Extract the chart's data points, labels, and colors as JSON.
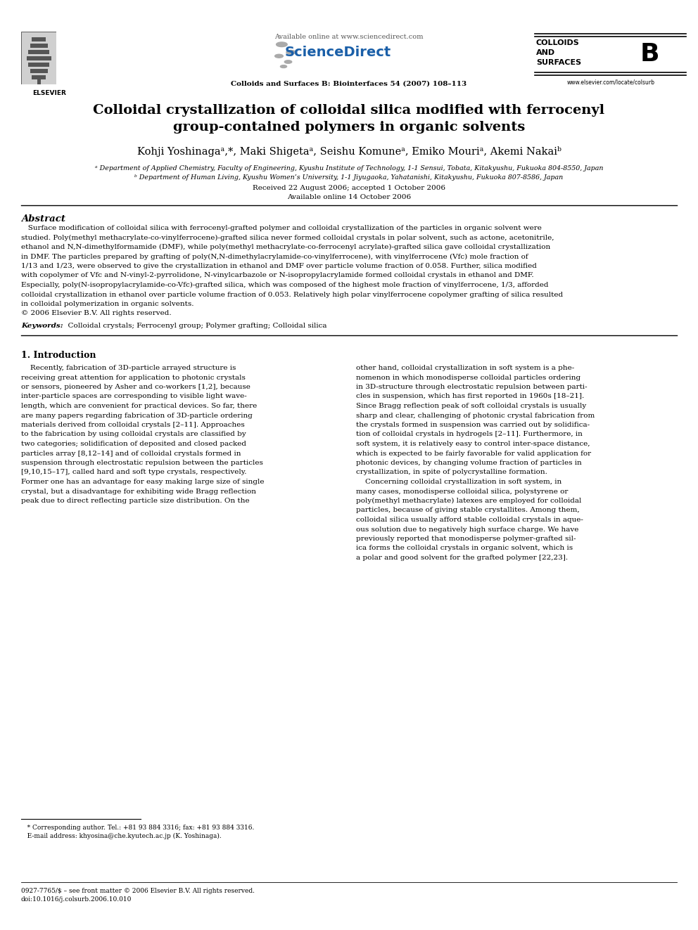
{
  "background_color": "#ffffff",
  "page_width": 9.92,
  "page_height": 13.23,
  "header": {
    "elsevier_text": "ELSEVIER",
    "available_online": "Available online at www.sciencedirect.com",
    "sciencedirect": "ScienceDirect",
    "journal_name": "Colloids and Surfaces B: Biointerfaces 54 (2007) 108–113",
    "colloids_line1": "COLLOIDS",
    "colloids_line2": "AND",
    "colloids_line3": "SURFACES",
    "colloids_B": "B",
    "website": "www.elsevier.com/locate/colsurb"
  },
  "title_line1": "Colloidal crystallization of colloidal silica modified with ferrocenyl",
  "title_line2": "group-contained polymers in organic solvents",
  "authors_line": "Kohji Yoshinagaᵃ,*, Maki Shigetaᵃ, Seishu Komuneᵃ, Emiko Mouriᵃ, Akemi Nakaiᵇ",
  "affil_a": "ᵃ Department of Applied Chemistry, Faculty of Engineering, Kyushu Institute of Technology, 1-1 Sensui, Tobata, Kitakyushu, Fukuoka 804-8550, Japan",
  "affil_b": "ᵇ Department of Human Living, Kyushu Women’s University, 1-1 Jiyugaoka, Yahatanishi, Kitakyushu, Fukuoka 807-8586, Japan",
  "received": "Received 22 August 2006; accepted 1 October 2006",
  "available": "Available online 14 October 2006",
  "abstract_title": "Abstract",
  "abstract_lines": [
    "   Surface modification of colloidal silica with ferrocenyl-grafted polymer and colloidal crystallization of the particles in organic solvent were",
    "studied. Poly(methyl methacrylate-co-vinylferrocene)-grafted silica never formed colloidal crystals in polar solvent, such as actone, acetonitrile,",
    "ethanol and N,N-dimethylformamide (DMF), while poly(methyl methacrylate-co-ferrocenyl acrylate)-grafted silica gave colloidal crystallization",
    "in DMF. The particles prepared by grafting of poly(N,N-dimethylacrylamide-co-vinylferrocene), with vinylferrocene (Vfc) mole fraction of",
    "1/13 and 1/23, were observed to give the crystallization in ethanol and DMF over particle volume fraction of 0.058. Further, silica modified",
    "with copolymer of Vfc and N-vinyl-2-pyrrolidone, N-vinylcarbazole or N-isopropylacrylamide formed colloidal crystals in ethanol and DMF.",
    "Especially, poly(N-isopropylacrylamide-co-Vfc)-grafted silica, which was composed of the highest mole fraction of vinylferrocene, 1/3, afforded",
    "colloidal crystallization in ethanol over particle volume fraction of 0.053. Relatively high polar vinylferrocene copolymer grafting of silica resulted",
    "in colloidal polymerization in organic solvents.",
    "© 2006 Elsevier B.V. All rights reserved."
  ],
  "keywords_label": "Keywords:",
  "keywords": "  Colloidal crystals; Ferrocenyl group; Polymer grafting; Colloidal silica",
  "section1_title": "1. Introduction",
  "col1_lines": [
    "    Recently, fabrication of 3D-particle arrayed structure is",
    "receiving great attention for application to photonic crystals",
    "or sensors, pioneered by Asher and co-workers [1,2], because",
    "inter-particle spaces are corresponding to visible light wave-",
    "length, which are convenient for practical devices. So far, there",
    "are many papers regarding fabrication of 3D-particle ordering",
    "materials derived from colloidal crystals [2–11]. Approaches",
    "to the fabrication by using colloidal crystals are classified by",
    "two categories; solidification of deposited and closed packed",
    "particles array [8,12–14] and of colloidal crystals formed in",
    "suspension through electrostatic repulsion between the particles",
    "[9,10,15–17], called hard and soft type crystals, respectively.",
    "Former one has an advantage for easy making large size of single",
    "crystal, but a disadvantage for exhibiting wide Bragg reflection",
    "peak due to direct reflecting particle size distribution. On the"
  ],
  "col2_lines": [
    "other hand, colloidal crystallization in soft system is a phe-",
    "nomenon in which monodisperse colloidal particles ordering",
    "in 3D-structure through electrostatic repulsion between parti-",
    "cles in suspension, which has first reported in 1960s [18–21].",
    "Since Bragg reflection peak of soft colloidal crystals is usually",
    "sharp and clear, challenging of photonic crystal fabrication from",
    "the crystals formed in suspension was carried out by solidifica-",
    "tion of colloidal crystals in hydrogels [2–11]. Furthermore, in",
    "soft system, it is relatively easy to control inter-space distance,",
    "which is expected to be fairly favorable for valid application for",
    "photonic devices, by changing volume fraction of particles in",
    "crystallization, in spite of polycrystalline formation.",
    "    Concerning colloidal crystallization in soft system, in",
    "many cases, monodisperse colloidal silica, polystyrene or",
    "poly(methyl methacrylate) latexes are employed for colloidal",
    "particles, because of giving stable crystallites. Among them,",
    "colloidal silica usually afford stable colloidal crystals in aque-",
    "ous solution due to negatively high surface charge. We have",
    "previously reported that monodisperse polymer-grafted sil-",
    "ica forms the colloidal crystals in organic solvent, which is",
    "a polar and good solvent for the grafted polymer [22,23]."
  ],
  "footnote_star": "   * Corresponding author. Tel.: +81 93 884 3316; fax: +81 93 884 3316.",
  "footnote_email": "   E-mail address: khyosina@che.kyutech.ac.jp (K. Yoshinaga).",
  "bottom_issn": "0927-7765/$ – see front matter © 2006 Elsevier B.V. All rights reserved.",
  "bottom_doi": "doi:10.1016/j.colsurb.2006.10.010"
}
